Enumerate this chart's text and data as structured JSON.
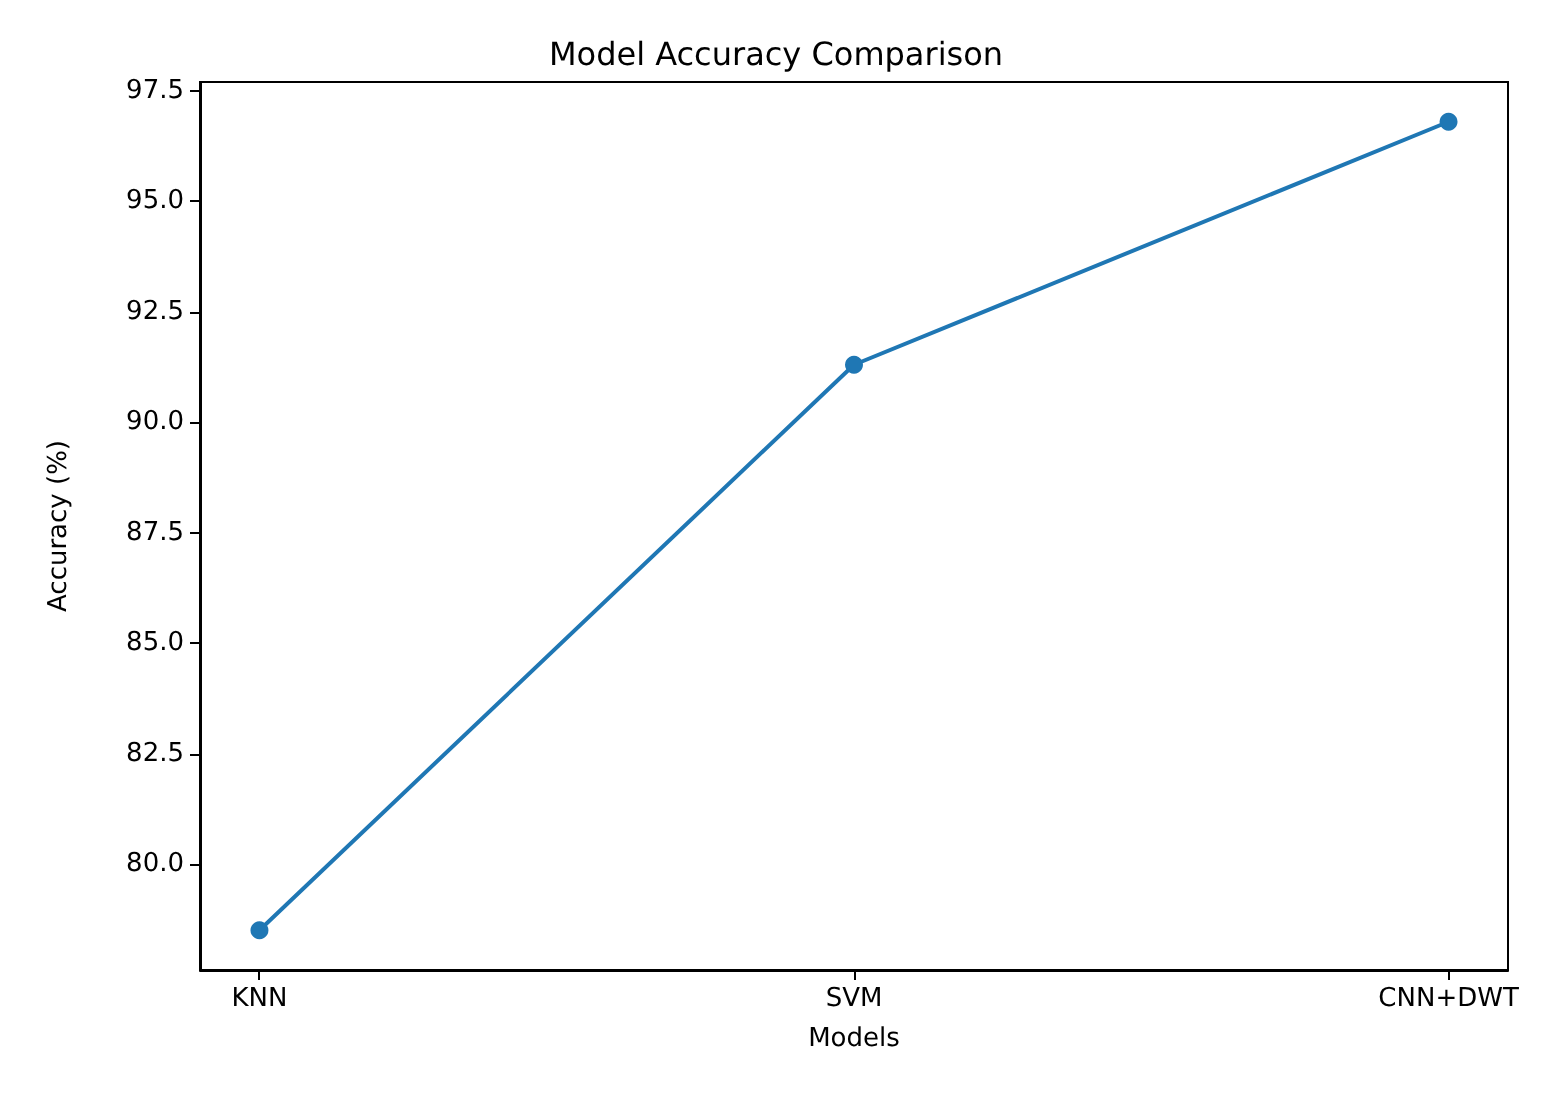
{
  "chart_data": {
    "type": "line",
    "title": "Model Accuracy Comparison",
    "xlabel": "Models",
    "ylabel": "Accuracy (%)",
    "categories": [
      "KNN",
      "SVM",
      "CNN+DWT"
    ],
    "series": [
      {
        "color": "#1f77b4",
        "values": [
          78.5,
          91.3,
          96.8
        ]
      }
    ],
    "ylim": [
      77.6,
      97.7
    ],
    "yticks": [
      {
        "value": 80,
        "label": "80.0"
      },
      82.5,
      {
        "value": 85,
        "label": "85.0"
      },
      87.5,
      {
        "value": 90,
        "label": "90.0"
      },
      92.5,
      {
        "value": 95,
        "label": "95.0"
      },
      97.5
    ],
    "marker": "circle",
    "line_style": "solid",
    "grid": false
  }
}
